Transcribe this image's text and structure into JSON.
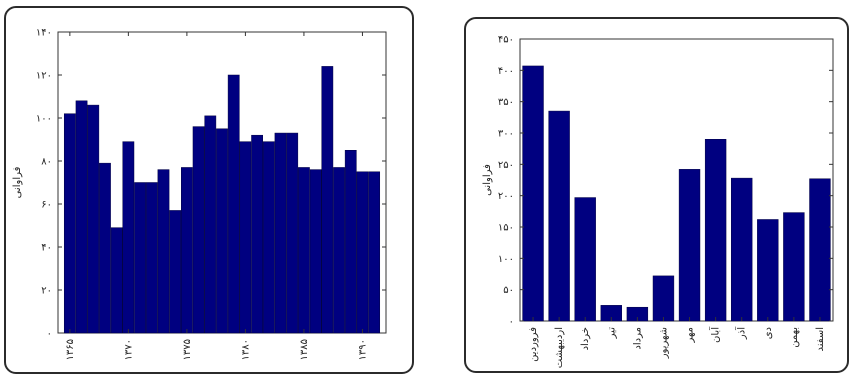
{
  "chart_data": [
    {
      "type": "bar",
      "ylabel": "فراوانی",
      "xlabel": "",
      "ylim": [
        0,
        140
      ],
      "yticks": [
        "۰",
        "۲۰",
        "۴۰",
        "۶۰",
        "۸۰",
        "۱۰۰",
        "۱۲۰",
        "۱۴۰"
      ],
      "ytick_values": [
        0,
        20,
        40,
        60,
        80,
        100,
        120,
        140
      ],
      "xticks": [
        "۱۳۶۵",
        "۱۳۷۰",
        "۱۳۷۵",
        "۱۳۸۰",
        "۱۳۸۵",
        "۱۳۹۰"
      ],
      "xtick_values": [
        1365,
        1370,
        1375,
        1380,
        1385,
        1390
      ],
      "x": [
        1365,
        1366,
        1367,
        1368,
        1369,
        1370,
        1371,
        1372,
        1373,
        1374,
        1375,
        1376,
        1377,
        1378,
        1379,
        1380,
        1381,
        1382,
        1383,
        1384,
        1385,
        1386,
        1387,
        1388,
        1389,
        1390,
        1391
      ],
      "values": [
        102,
        108,
        106,
        79,
        49,
        89,
        70,
        70,
        76,
        57,
        77,
        96,
        101,
        95,
        120,
        89,
        92,
        89,
        93,
        93,
        77,
        76,
        124,
        77,
        85,
        75,
        75
      ],
      "bar_color": "#000080"
    },
    {
      "type": "bar",
      "ylabel": "فراوانی",
      "xlabel": "",
      "ylim": [
        0,
        450
      ],
      "yticks": [
        "۰",
        "۵۰",
        "۱۰۰",
        "۱۵۰",
        "۲۰۰",
        "۲۵۰",
        "۳۰۰",
        "۳۵۰",
        "۴۰۰",
        "۴۵۰"
      ],
      "ytick_values": [
        0,
        50,
        100,
        150,
        200,
        250,
        300,
        350,
        400,
        450
      ],
      "categories": [
        "فروردین",
        "اردیبهشت",
        "خرداد",
        "تیر",
        "مرداد",
        "شهریور",
        "مهر",
        "آبان",
        "آذر",
        "دی",
        "بهمن",
        "اسفند"
      ],
      "values": [
        407,
        335,
        197,
        25,
        22,
        72,
        242,
        290,
        228,
        162,
        173,
        227
      ],
      "bar_color": "#000080"
    }
  ]
}
